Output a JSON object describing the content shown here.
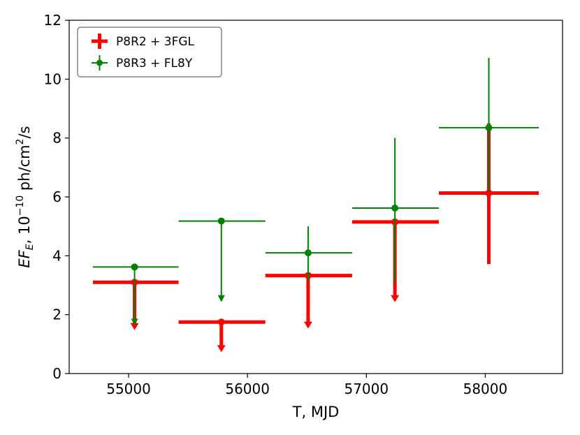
{
  "chart_data": {
    "type": "scatter",
    "title": "",
    "xlabel": "T, MJD",
    "ylabel_parts": {
      "e": "EF",
      "sub": "E",
      "mid": ", 10",
      "exp": "−10",
      "unit": " ph/cm",
      "unit_exp": "2",
      "tail": "/s"
    },
    "xlim": [
      54500,
      58650
    ],
    "ylim": [
      0,
      12
    ],
    "xticks": [
      55000,
      56000,
      57000,
      58000
    ],
    "yticks": [
      0,
      2,
      4,
      6,
      8,
      10,
      12
    ],
    "grid": false,
    "legend_position": "top-left",
    "series": [
      {
        "name": "P8R2 + 3FGL",
        "color": "#ff0000",
        "style": "thick",
        "points": [
          {
            "x": 55050,
            "x_lo": 54700,
            "x_hi": 55420,
            "y": 3.1,
            "y_lo": 1.5,
            "y_hi": 3.1,
            "upper_limit": true
          },
          {
            "x": 55780,
            "x_lo": 55420,
            "x_hi": 56150,
            "y": 1.75,
            "y_lo": 0.75,
            "y_hi": 1.75,
            "upper_limit": true
          },
          {
            "x": 56510,
            "x_lo": 56150,
            "x_hi": 56880,
            "y": 3.33,
            "y_lo": 1.55,
            "y_hi": 3.33,
            "upper_limit": true
          },
          {
            "x": 57240,
            "x_lo": 56880,
            "x_hi": 57610,
            "y": 5.15,
            "y_lo": 2.45,
            "y_hi": 5.15,
            "upper_limit": true
          },
          {
            "x": 58030,
            "x_lo": 57610,
            "x_hi": 58450,
            "y": 6.13,
            "y_lo": 3.72,
            "y_hi": 8.5,
            "upper_limit": false
          }
        ]
      },
      {
        "name": "P8R3 + FL8Y",
        "color": "#008000",
        "style": "thin",
        "points": [
          {
            "x": 55050,
            "x_lo": 54700,
            "x_hi": 55420,
            "y": 3.62,
            "y_lo": 1.65,
            "y_hi": 3.62,
            "upper_limit": true
          },
          {
            "x": 55780,
            "x_lo": 55420,
            "x_hi": 56150,
            "y": 5.18,
            "y_lo": 2.45,
            "y_hi": 5.18,
            "upper_limit": true
          },
          {
            "x": 56510,
            "x_lo": 56150,
            "x_hi": 56880,
            "y": 4.1,
            "y_lo": 3.15,
            "y_hi": 5.0,
            "upper_limit": false
          },
          {
            "x": 57240,
            "x_lo": 56880,
            "x_hi": 57610,
            "y": 5.62,
            "y_lo": 3.1,
            "y_hi": 8.0,
            "upper_limit": false
          },
          {
            "x": 58030,
            "x_lo": 57610,
            "x_hi": 58450,
            "y": 8.35,
            "y_lo": 6.2,
            "y_hi": 10.72,
            "upper_limit": false
          }
        ]
      }
    ]
  }
}
